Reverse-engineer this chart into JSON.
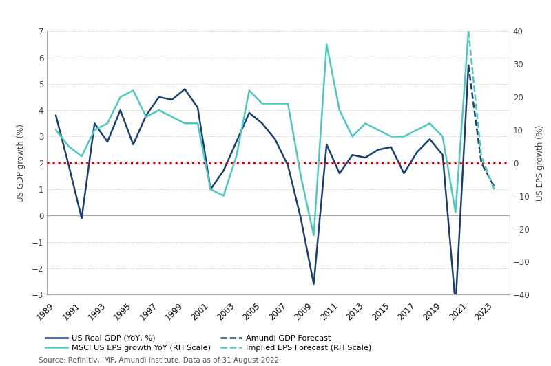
{
  "title_bar_color": "#1a3f6f",
  "bg_color": "#ffffff",
  "grid_color": "#bbbbbb",
  "gdp_years": [
    1989,
    1990,
    1991,
    1992,
    1993,
    1994,
    1995,
    1996,
    1997,
    1998,
    1999,
    2000,
    2001,
    2002,
    2003,
    2004,
    2005,
    2006,
    2007,
    2008,
    2009,
    2010,
    2011,
    2012,
    2013,
    2014,
    2015,
    2016,
    2017,
    2018,
    2019,
    2020,
    2021
  ],
  "gdp_values": [
    3.8,
    1.9,
    -0.1,
    3.5,
    2.8,
    4.0,
    2.7,
    3.8,
    4.5,
    4.4,
    4.8,
    4.1,
    1.0,
    1.7,
    2.8,
    3.9,
    3.5,
    2.9,
    1.9,
    -0.1,
    -2.6,
    2.7,
    1.6,
    2.3,
    2.2,
    2.5,
    2.6,
    1.6,
    2.4,
    2.9,
    2.3,
    -3.4,
    5.7
  ],
  "eps_years": [
    1989,
    1990,
    1991,
    1992,
    1993,
    1994,
    1995,
    1996,
    1997,
    1998,
    1999,
    2000,
    2001,
    2002,
    2003,
    2004,
    2005,
    2006,
    2007,
    2008,
    2009,
    2010,
    2011,
    2012,
    2013,
    2014,
    2015,
    2016,
    2017,
    2018,
    2019,
    2020,
    2021
  ],
  "eps_values": [
    10,
    5,
    2,
    10,
    12,
    20,
    22,
    14,
    16,
    14,
    12,
    12,
    -8,
    -10,
    2,
    22,
    18,
    18,
    18,
    -4,
    -22,
    36,
    16,
    8,
    12,
    10,
    8,
    8,
    10,
    12,
    8,
    -15,
    40
  ],
  "gdp_forecast_years": [
    2021,
    2022,
    2023
  ],
  "gdp_forecast_values": [
    5.7,
    2.0,
    1.1
  ],
  "eps_forecast_years": [
    2021,
    2022,
    2023
  ],
  "eps_forecast_values": [
    40,
    2,
    -8
  ],
  "red_line_gdp": 2.0,
  "gdp_color": "#1a3f6f",
  "eps_color": "#4ec9c0",
  "red_color": "#cc0000",
  "ylabel_left": "US GDP growth (%)",
  "ylabel_right": "US EPS growth (%)",
  "ylim_left": [
    -3,
    7
  ],
  "ylim_right": [
    -40,
    40
  ],
  "xlim": [
    1988.3,
    2024.2
  ],
  "yticks_left": [
    -3,
    -2,
    -1,
    0,
    1,
    2,
    3,
    4,
    5,
    6,
    7
  ],
  "yticks_right": [
    -40,
    -30,
    -20,
    -10,
    0,
    10,
    20,
    30,
    40
  ],
  "xtick_years": [
    1989,
    1991,
    1993,
    1995,
    1997,
    1999,
    2001,
    2003,
    2005,
    2007,
    2009,
    2011,
    2013,
    2015,
    2017,
    2019,
    2021,
    2023
  ],
  "source_text": "Source: Refinitiv, IMF, Amundi Institute. Data as of 31 August 2022",
  "legend_items": [
    {
      "label": "US Real GDP (YoY, %)",
      "color": "#1a3f6f",
      "linestyle": "solid"
    },
    {
      "label": "Amundi GDP Forecast",
      "color": "#1a3f6f",
      "linestyle": "dashed"
    },
    {
      "label": "MSCI US EPS growth YoY (RH Scale)",
      "color": "#4ec9c0",
      "linestyle": "solid"
    },
    {
      "label": "Implied EPS Forecast (RH Scale)",
      "color": "#4ec9c0",
      "linestyle": "dashed"
    }
  ]
}
